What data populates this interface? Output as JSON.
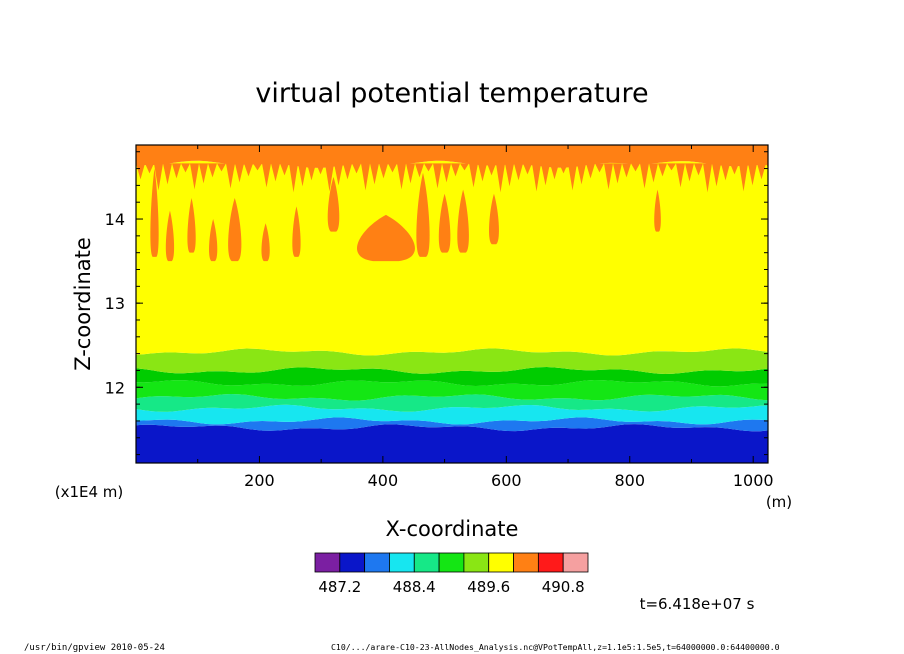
{
  "chart_data": {
    "type": "heatmap",
    "title": "virtual potential temperature",
    "xlabel": "X-coordinate",
    "ylabel": "Z-coordinate",
    "x_unit": "(m)",
    "y_unit": "(x1E4 m)",
    "xlim": [
      0,
      1024
    ],
    "ylim": [
      11.1,
      14.88
    ],
    "x_ticks": [
      200,
      400,
      600,
      800,
      1000
    ],
    "y_ticks": [
      12,
      13,
      14
    ],
    "time_label": "t=6.418e+07 s",
    "colorbar": {
      "levels": [
        486.8,
        487.2,
        487.6,
        488.0,
        488.4,
        488.8,
        489.2,
        489.6,
        490.0,
        490.4,
        490.8,
        491.2
      ],
      "tick_labels": [
        "487.2",
        "488.4",
        "489.6",
        "490.8"
      ],
      "colors": [
        "#7b1fa2",
        "#0a16c9",
        "#1e78f0",
        "#17e6f0",
        "#16e887",
        "#14e614",
        "#8ae614",
        "#ffff00",
        "#ff8014",
        "#ff1a1a",
        "#f5a0a0"
      ]
    },
    "bands": [
      {
        "z_bottom": 11.1,
        "z_top": 11.52,
        "color": "#0a16c9"
      },
      {
        "z_bottom": 11.52,
        "z_top": 11.6,
        "color": "#1e78f0"
      },
      {
        "z_bottom": 11.6,
        "z_top": 11.75,
        "color": "#17e6f0"
      },
      {
        "z_bottom": 11.75,
        "z_top": 11.88,
        "color": "#16e887"
      },
      {
        "z_bottom": 11.88,
        "z_top": 12.05,
        "color": "#14e614"
      },
      {
        "z_bottom": 12.05,
        "z_top": 12.2,
        "color": "#00cc00"
      },
      {
        "z_bottom": 12.2,
        "z_top": 12.42,
        "color": "#8ae614"
      },
      {
        "z_bottom": 12.42,
        "z_top": 14.65,
        "color": "#ffff00"
      },
      {
        "z_bottom": 14.65,
        "z_top": 14.88,
        "color": "#ff8014"
      }
    ],
    "plumes": [
      {
        "x": 30,
        "z_bottom": 13.55,
        "z_top": 14.6,
        "w": 10
      },
      {
        "x": 55,
        "z_bottom": 13.5,
        "z_top": 14.1,
        "w": 10
      },
      {
        "x": 90,
        "z_bottom": 13.6,
        "z_top": 14.25,
        "w": 10
      },
      {
        "x": 125,
        "z_bottom": 13.5,
        "z_top": 14.0,
        "w": 10
      },
      {
        "x": 160,
        "z_bottom": 13.5,
        "z_top": 14.25,
        "w": 16
      },
      {
        "x": 210,
        "z_bottom": 13.5,
        "z_top": 13.95,
        "w": 10
      },
      {
        "x": 260,
        "z_bottom": 13.55,
        "z_top": 14.15,
        "w": 10
      },
      {
        "x": 320,
        "z_bottom": 13.85,
        "z_top": 14.5,
        "w": 14
      },
      {
        "x": 405,
        "z_bottom": 13.5,
        "z_top": 14.05,
        "w": 70
      },
      {
        "x": 465,
        "z_bottom": 13.55,
        "z_top": 14.55,
        "w": 16
      },
      {
        "x": 500,
        "z_bottom": 13.6,
        "z_top": 14.3,
        "w": 14
      },
      {
        "x": 530,
        "z_bottom": 13.6,
        "z_top": 14.35,
        "w": 14
      },
      {
        "x": 580,
        "z_bottom": 13.7,
        "z_top": 14.3,
        "w": 12
      },
      {
        "x": 845,
        "z_bottom": 13.85,
        "z_top": 14.35,
        "w": 8
      }
    ]
  },
  "footer": {
    "left": "/usr/bin/gpview  2010-05-24",
    "right": "C10/.../arare-C10-23-AllNodes_Analysis.nc@VPotTempAll,z=1.1e5:1.5e5,t=64000000.0:64400000.0"
  }
}
